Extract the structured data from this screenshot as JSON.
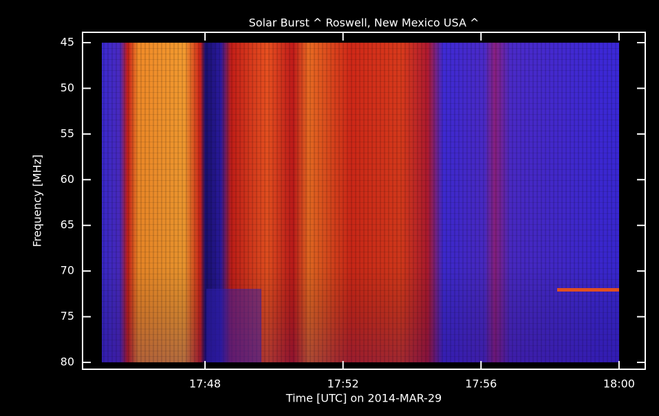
{
  "chart_data": {
    "type": "spectrogram",
    "title": "Solar Burst ^ Roswell, New Mexico USA ^",
    "x_label": "Time [UTC] on 2014-MAR-29",
    "y_label": "Frequency [MHz]",
    "xlim": [
      1064.45,
      1080.76
    ],
    "xticks": [
      {
        "value": 1068,
        "label": "17:48"
      },
      {
        "value": 1072,
        "label": "17:52"
      },
      {
        "value": 1076,
        "label": "17:56"
      },
      {
        "value": 1080,
        "label": "18:00"
      }
    ],
    "ylim": [
      80.75,
      43.87
    ],
    "yticks": [
      45,
      50,
      55,
      60,
      65,
      70,
      75,
      80
    ]
  }
}
